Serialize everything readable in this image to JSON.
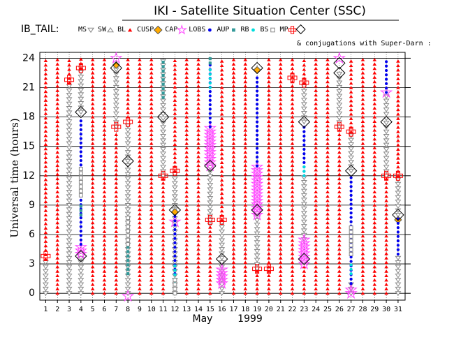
{
  "chart_data": {
    "type": "timeline",
    "title": "IKI - Satellite Situation Center (SSC)",
    "legend_title": "IB_TAIL:",
    "conjugations": {
      "label": "& conjugations with Super-Darn :",
      "color": "#000000",
      "symbol": "diamond-open",
      "spans": [
        [
          4,
          18.5,
          18.5
        ],
        [
          4,
          3.8,
          3.8
        ],
        [
          7,
          23,
          23
        ],
        [
          8,
          13.5,
          13.5
        ],
        [
          11,
          18,
          18
        ],
        [
          12,
          8.5,
          8.5
        ],
        [
          15,
          13,
          13
        ],
        [
          16,
          3.5,
          3.5
        ],
        [
          19,
          8.5,
          8.5
        ],
        [
          19,
          23,
          23
        ],
        [
          23,
          17.5,
          17.5
        ],
        [
          23,
          3.5,
          3.5
        ],
        [
          26,
          22.5,
          22.5
        ],
        [
          26,
          23.5,
          23.5
        ],
        [
          27,
          12.5,
          12.5
        ],
        [
          30,
          17.5,
          17.5
        ],
        [
          31,
          8,
          8
        ]
      ]
    },
    "ylabel": "Universal time (hours)",
    "xlabel_month": "May",
    "xlabel_year": "1999",
    "xlim": [
      0.5,
      31.6
    ],
    "ylim": [
      -0.7,
      24.6
    ],
    "xticks": [
      1,
      2,
      3,
      4,
      5,
      6,
      7,
      8,
      9,
      10,
      11,
      12,
      13,
      14,
      15,
      16,
      17,
      18,
      19,
      20,
      21,
      22,
      23,
      24,
      25,
      26,
      27,
      28,
      29,
      30,
      31
    ],
    "yticks": [
      0,
      3,
      6,
      9,
      12,
      15,
      18,
      21,
      24
    ],
    "grid": true,
    "series": [
      {
        "name": "MS",
        "color": "#888888",
        "symbol": "tri-down-open",
        "spans": [
          [
            1,
            0,
            3.5
          ],
          [
            3,
            0,
            21.5
          ],
          [
            4,
            18.5,
            23
          ],
          [
            4,
            0,
            4
          ],
          [
            7,
            17,
            23
          ],
          [
            8,
            0,
            17.5
          ],
          [
            11,
            12,
            24
          ],
          [
            12,
            0,
            12.5
          ],
          [
            15,
            7,
            13
          ],
          [
            16,
            0,
            7.5
          ],
          [
            19,
            2.5,
            8
          ],
          [
            23,
            17.5,
            21.5
          ],
          [
            23,
            5.5,
            12
          ],
          [
            26,
            17,
            22.5
          ],
          [
            27,
            12.5,
            16.5
          ],
          [
            27,
            0,
            1
          ],
          [
            30,
            12,
            20.5
          ],
          [
            31,
            8,
            12
          ],
          [
            31,
            0,
            4
          ]
        ]
      },
      {
        "name": "SW",
        "color": "#888888",
        "symbol": "tri-open",
        "spans": []
      },
      {
        "name": "BL",
        "color": "#ff0000",
        "symbol": "tri-fill",
        "spans": [
          [
            1,
            3.5,
            24
          ],
          [
            2,
            0,
            24
          ],
          [
            3,
            21.5,
            24
          ],
          [
            4,
            23,
            24
          ],
          [
            5,
            0,
            24
          ],
          [
            6,
            0,
            24
          ],
          [
            7,
            0,
            16.5
          ],
          [
            8,
            18,
            24
          ],
          [
            9,
            0,
            24
          ],
          [
            10,
            0,
            24
          ],
          [
            11,
            0,
            12
          ],
          [
            12,
            12.5,
            24
          ],
          [
            13,
            0,
            24
          ],
          [
            14,
            0,
            24
          ],
          [
            15,
            0,
            7
          ],
          [
            16,
            7.5,
            24
          ],
          [
            17,
            0,
            24
          ],
          [
            18,
            0,
            24
          ],
          [
            19,
            0,
            2.5
          ],
          [
            20,
            0,
            24
          ],
          [
            21,
            0,
            24
          ],
          [
            22,
            0,
            24
          ],
          [
            23,
            21.5,
            24
          ],
          [
            23,
            0,
            3
          ],
          [
            24,
            0,
            24
          ],
          [
            25,
            0,
            24
          ],
          [
            26,
            0,
            17
          ],
          [
            27,
            16.5,
            24
          ],
          [
            28,
            0,
            24
          ],
          [
            29,
            0,
            24
          ],
          [
            30,
            0,
            12
          ],
          [
            31,
            12,
            24
          ]
        ]
      },
      {
        "name": "CUSP",
        "color": "#ffaa00",
        "symbol": "diamond-fill",
        "spans": [
          [
            7,
            23.3,
            23.3
          ],
          [
            12,
            8.3,
            8.3
          ],
          [
            19,
            22.8,
            22.8
          ],
          [
            31,
            7.5,
            7.5
          ]
        ]
      },
      {
        "name": "CAP",
        "color": "#ff44ff",
        "symbol": "star",
        "spans": [
          [
            4,
            4,
            5
          ],
          [
            15,
            13,
            17
          ],
          [
            16,
            1,
            2.5
          ],
          [
            19,
            8,
            13
          ],
          [
            23,
            3,
            5.5
          ],
          [
            27,
            0,
            0.5
          ],
          [
            7,
            24,
            24
          ],
          [
            8,
            -0.3,
            -0.3
          ],
          [
            12,
            7.3,
            7.3
          ],
          [
            26,
            24,
            24
          ],
          [
            30,
            20.5,
            20.5
          ]
        ]
      },
      {
        "name": "LOBS",
        "color": "#0000ee",
        "symbol": "dot",
        "spans": [
          [
            4,
            5,
            18
          ],
          [
            12,
            2,
            8
          ],
          [
            15,
            17,
            23.5
          ],
          [
            19,
            13,
            22
          ],
          [
            23,
            12,
            17
          ],
          [
            27,
            1,
            12
          ],
          [
            30,
            20.5,
            24
          ],
          [
            31,
            4,
            8
          ]
        ]
      },
      {
        "name": "AUP",
        "color": "#339999",
        "symbol": "square-fill",
        "spans": [
          [
            11,
            20,
            24
          ],
          [
            4,
            8,
            9
          ],
          [
            15,
            23.5,
            24
          ],
          [
            8,
            2,
            5
          ]
        ]
      },
      {
        "name": "RB",
        "color": "#00dddd",
        "symbol": "dot",
        "spans": [
          [
            12,
            1,
            3
          ],
          [
            15,
            21,
            23
          ],
          [
            23,
            12,
            13
          ],
          [
            27,
            2,
            3
          ]
        ]
      },
      {
        "name": "BS",
        "color": "#888888",
        "symbol": "square-open",
        "spans": [
          [
            4,
            10,
            13
          ],
          [
            8,
            5,
            8
          ],
          [
            12,
            0,
            1.5
          ],
          [
            27,
            4,
            7
          ]
        ]
      },
      {
        "name": "MP",
        "color": "#ff0000",
        "symbol": "cross",
        "spans": [
          [
            1,
            3.8,
            3.8
          ],
          [
            3,
            21.8,
            21.8
          ],
          [
            4,
            23,
            23
          ],
          [
            7,
            17,
            17
          ],
          [
            8,
            17.5,
            17.5
          ],
          [
            11,
            12,
            12
          ],
          [
            12,
            12.5,
            12.5
          ],
          [
            15,
            7.5,
            7.5
          ],
          [
            16,
            7.5,
            7.5
          ],
          [
            19,
            2.5,
            2.5
          ],
          [
            20,
            2.5,
            2.5
          ],
          [
            22,
            22,
            22
          ],
          [
            23,
            21.5,
            21.5
          ],
          [
            26,
            17,
            17
          ],
          [
            27,
            16.5,
            16.5
          ],
          [
            30,
            12,
            12
          ],
          [
            31,
            12,
            12
          ]
        ]
      }
    ]
  }
}
